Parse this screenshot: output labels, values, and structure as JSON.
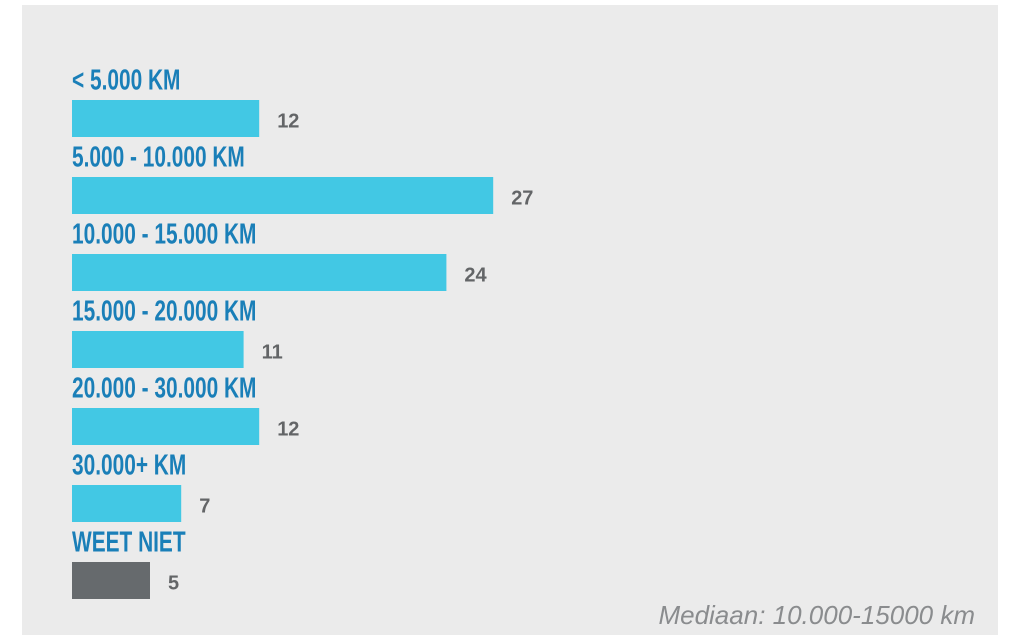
{
  "chart_data": {
    "type": "hbar",
    "categories": [
      "< 5.000 KM",
      "5.000 - 10.000 KM",
      "10.000 - 15.000 KM",
      "15.000 - 20.000 KM",
      "20.000 - 30.000 KM",
      "30.000+ KM",
      "WEET NIET"
    ],
    "values": [
      12,
      27,
      24,
      11,
      12,
      7,
      5
    ],
    "colors": [
      "#42c8e4",
      "#42c8e4",
      "#42c8e4",
      "#42c8e4",
      "#42c8e4",
      "#42c8e4",
      "#666a6d"
    ],
    "annotation": "Mediaan: 10.000-15000 km"
  }
}
